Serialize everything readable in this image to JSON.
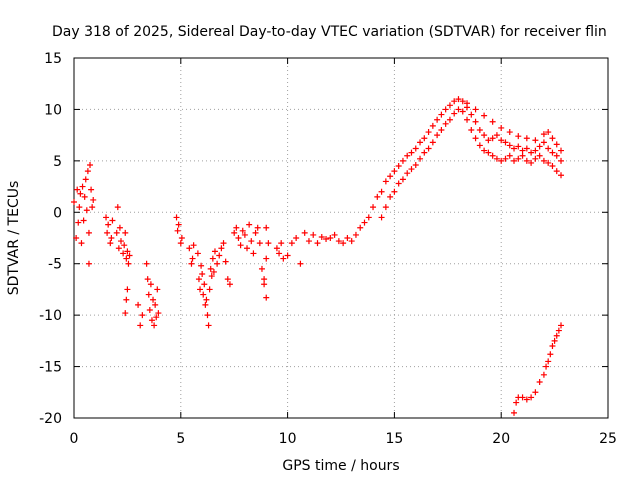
{
  "chart_data": {
    "type": "scatter",
    "title": "Day 318 of 2025, Sidereal Day-to-day VTEC variation (SDTVAR) for receiver flin",
    "xlabel": "GPS time / hours",
    "ylabel": "SDTVAR / TECUs",
    "xlim": [
      0,
      25
    ],
    "ylim": [
      -20,
      15
    ],
    "xticks": [
      0,
      5,
      10,
      15,
      20,
      25
    ],
    "yticks": [
      -20,
      -15,
      -10,
      -5,
      0,
      5,
      10,
      15
    ],
    "grid": true,
    "marker": "+",
    "color": "#ff0000",
    "series": [
      {
        "name": "SDTVAR",
        "points": [
          [
            0.0,
            1.0
          ],
          [
            0.1,
            -2.5
          ],
          [
            0.15,
            2.2
          ],
          [
            0.2,
            -1.0
          ],
          [
            0.25,
            0.5
          ],
          [
            0.3,
            1.8
          ],
          [
            0.35,
            -3.0
          ],
          [
            0.4,
            2.5
          ],
          [
            0.45,
            -0.8
          ],
          [
            0.5,
            1.5
          ],
          [
            0.55,
            3.2
          ],
          [
            0.6,
            0.2
          ],
          [
            0.65,
            4.0
          ],
          [
            0.7,
            -2.0
          ],
          [
            0.75,
            4.6
          ],
          [
            0.8,
            2.2
          ],
          [
            0.85,
            0.5
          ],
          [
            0.9,
            1.2
          ],
          [
            0.7,
            -5.0
          ],
          [
            1.5,
            -0.5
          ],
          [
            1.55,
            -2.0
          ],
          [
            1.6,
            -1.2
          ],
          [
            1.7,
            -3.0
          ],
          [
            1.75,
            -2.5
          ],
          [
            1.8,
            -0.8
          ],
          [
            2.0,
            -2.0
          ],
          [
            2.05,
            0.5
          ],
          [
            2.1,
            -3.5
          ],
          [
            2.15,
            -1.5
          ],
          [
            2.2,
            -2.8
          ],
          [
            2.3,
            -4.0
          ],
          [
            2.35,
            -3.2
          ],
          [
            2.4,
            -2.0
          ],
          [
            2.45,
            -4.5
          ],
          [
            2.5,
            -3.8
          ],
          [
            2.55,
            -5.0
          ],
          [
            2.6,
            -4.2
          ],
          [
            2.5,
            -7.5
          ],
          [
            2.45,
            -8.5
          ],
          [
            2.4,
            -9.8
          ],
          [
            3.0,
            -9.0
          ],
          [
            3.1,
            -11.0
          ],
          [
            3.2,
            -10.0
          ],
          [
            3.4,
            -5.0
          ],
          [
            3.45,
            -6.5
          ],
          [
            3.5,
            -8.0
          ],
          [
            3.55,
            -9.5
          ],
          [
            3.6,
            -7.0
          ],
          [
            3.65,
            -10.5
          ],
          [
            3.7,
            -8.5
          ],
          [
            3.75,
            -11.0
          ],
          [
            3.8,
            -9.0
          ],
          [
            3.85,
            -10.2
          ],
          [
            3.9,
            -7.5
          ],
          [
            3.95,
            -9.8
          ],
          [
            4.8,
            -0.5
          ],
          [
            4.85,
            -1.8
          ],
          [
            4.9,
            -1.2
          ],
          [
            5.0,
            -3.0
          ],
          [
            5.05,
            -2.5
          ],
          [
            5.4,
            -3.5
          ],
          [
            5.5,
            -5.0
          ],
          [
            5.55,
            -4.5
          ],
          [
            5.6,
            -3.2
          ],
          [
            5.8,
            -4.0
          ],
          [
            5.85,
            -6.5
          ],
          [
            5.9,
            -7.5
          ],
          [
            5.95,
            -5.2
          ],
          [
            6.0,
            -6.0
          ],
          [
            6.05,
            -8.0
          ],
          [
            6.1,
            -7.0
          ],
          [
            6.15,
            -9.0
          ],
          [
            6.2,
            -8.5
          ],
          [
            6.25,
            -10.0
          ],
          [
            6.3,
            -11.0
          ],
          [
            6.35,
            -7.5
          ],
          [
            6.4,
            -5.5
          ],
          [
            6.45,
            -6.2
          ],
          [
            6.5,
            -4.5
          ],
          [
            6.55,
            -5.8
          ],
          [
            6.6,
            -3.8
          ],
          [
            6.7,
            -5.0
          ],
          [
            6.8,
            -4.2
          ],
          [
            6.9,
            -3.5
          ],
          [
            7.0,
            -3.0
          ],
          [
            7.1,
            -4.8
          ],
          [
            7.2,
            -6.5
          ],
          [
            7.3,
            -7.0
          ],
          [
            7.5,
            -2.0
          ],
          [
            7.6,
            -1.5
          ],
          [
            7.7,
            -2.5
          ],
          [
            7.8,
            -3.2
          ],
          [
            7.9,
            -1.8
          ],
          [
            8.0,
            -2.2
          ],
          [
            8.1,
            -3.5
          ],
          [
            8.2,
            -1.2
          ],
          [
            8.3,
            -2.8
          ],
          [
            8.4,
            -4.0
          ],
          [
            8.5,
            -2.0
          ],
          [
            8.6,
            -1.5
          ],
          [
            8.7,
            -3.0
          ],
          [
            8.8,
            -5.5
          ],
          [
            8.9,
            -6.5
          ],
          [
            9.0,
            -4.5
          ],
          [
            9.1,
            -3.0
          ],
          [
            9.0,
            -1.5
          ],
          [
            8.9,
            -7.0
          ],
          [
            9.0,
            -8.3
          ],
          [
            9.5,
            -3.5
          ],
          [
            9.6,
            -4.0
          ],
          [
            9.7,
            -3.0
          ],
          [
            9.8,
            -4.5
          ],
          [
            10.0,
            -4.2
          ],
          [
            10.2,
            -3.0
          ],
          [
            10.4,
            -2.5
          ],
          [
            10.6,
            -5.0
          ],
          [
            10.8,
            -2.0
          ],
          [
            11.0,
            -2.8
          ],
          [
            11.2,
            -2.2
          ],
          [
            11.4,
            -3.0
          ],
          [
            11.6,
            -2.4
          ],
          [
            11.8,
            -2.6
          ],
          [
            12.0,
            -2.5
          ],
          [
            12.2,
            -2.2
          ],
          [
            12.4,
            -2.8
          ],
          [
            12.6,
            -3.0
          ],
          [
            12.8,
            -2.5
          ],
          [
            13.0,
            -2.8
          ],
          [
            13.2,
            -2.2
          ],
          [
            13.4,
            -1.5
          ],
          [
            13.6,
            -1.0
          ],
          [
            13.8,
            -0.5
          ],
          [
            14.0,
            0.5
          ],
          [
            14.2,
            1.5
          ],
          [
            14.4,
            2.0
          ],
          [
            14.6,
            3.0
          ],
          [
            14.8,
            3.5
          ],
          [
            15.0,
            4.0
          ],
          [
            15.2,
            4.5
          ],
          [
            15.4,
            5.0
          ],
          [
            15.6,
            5.5
          ],
          [
            15.8,
            5.8
          ],
          [
            16.0,
            6.2
          ],
          [
            16.2,
            6.8
          ],
          [
            16.4,
            7.2
          ],
          [
            16.6,
            7.8
          ],
          [
            16.8,
            8.4
          ],
          [
            17.0,
            9.0
          ],
          [
            17.2,
            9.5
          ],
          [
            17.4,
            10.0
          ],
          [
            17.6,
            10.4
          ],
          [
            17.8,
            10.8
          ],
          [
            18.0,
            11.0
          ],
          [
            18.2,
            10.8
          ],
          [
            18.4,
            10.2
          ],
          [
            18.6,
            9.5
          ],
          [
            18.8,
            8.8
          ],
          [
            19.0,
            8.0
          ],
          [
            19.2,
            7.5
          ],
          [
            19.4,
            7.0
          ],
          [
            19.6,
            7.2
          ],
          [
            19.8,
            7.5
          ],
          [
            20.0,
            7.0
          ],
          [
            20.2,
            6.8
          ],
          [
            20.4,
            6.5
          ],
          [
            20.6,
            6.2
          ],
          [
            20.8,
            6.4
          ],
          [
            21.0,
            6.0
          ],
          [
            21.2,
            6.2
          ],
          [
            21.4,
            5.8
          ],
          [
            21.6,
            6.0
          ],
          [
            21.8,
            6.4
          ],
          [
            22.0,
            6.8
          ],
          [
            22.2,
            6.2
          ],
          [
            22.4,
            5.8
          ],
          [
            22.6,
            5.5
          ],
          [
            22.8,
            5.0
          ],
          [
            14.4,
            -0.5
          ],
          [
            14.6,
            0.5
          ],
          [
            14.8,
            1.5
          ],
          [
            15.0,
            2.0
          ],
          [
            15.2,
            2.8
          ],
          [
            15.4,
            3.2
          ],
          [
            15.6,
            3.8
          ],
          [
            15.8,
            4.2
          ],
          [
            16.0,
            4.6
          ],
          [
            16.2,
            5.2
          ],
          [
            16.4,
            5.8
          ],
          [
            16.6,
            6.2
          ],
          [
            16.8,
            6.8
          ],
          [
            17.0,
            7.5
          ],
          [
            17.2,
            8.0
          ],
          [
            17.4,
            8.6
          ],
          [
            17.6,
            9.0
          ],
          [
            17.8,
            9.6
          ],
          [
            18.0,
            10.0
          ],
          [
            18.2,
            9.8
          ],
          [
            18.4,
            9.0
          ],
          [
            18.6,
            8.0
          ],
          [
            18.8,
            7.2
          ],
          [
            19.0,
            6.5
          ],
          [
            19.2,
            6.0
          ],
          [
            19.4,
            5.8
          ],
          [
            19.6,
            5.5
          ],
          [
            19.8,
            5.2
          ],
          [
            20.0,
            5.0
          ],
          [
            20.2,
            5.2
          ],
          [
            20.4,
            5.5
          ],
          [
            20.6,
            5.0
          ],
          [
            20.8,
            5.2
          ],
          [
            21.0,
            5.5
          ],
          [
            21.2,
            5.0
          ],
          [
            21.4,
            4.8
          ],
          [
            21.6,
            5.2
          ],
          [
            21.8,
            5.5
          ],
          [
            22.0,
            5.0
          ],
          [
            22.2,
            4.8
          ],
          [
            22.4,
            4.5
          ],
          [
            22.6,
            4.0
          ],
          [
            22.8,
            3.6
          ],
          [
            18.4,
            10.6
          ],
          [
            18.8,
            10.0
          ],
          [
            19.2,
            9.4
          ],
          [
            19.6,
            8.8
          ],
          [
            20.0,
            8.2
          ],
          [
            20.4,
            7.8
          ],
          [
            20.8,
            7.4
          ],
          [
            21.2,
            7.2
          ],
          [
            21.6,
            7.0
          ],
          [
            22.0,
            7.6
          ],
          [
            22.2,
            7.8
          ],
          [
            22.4,
            7.2
          ],
          [
            22.6,
            6.6
          ],
          [
            22.8,
            6.0
          ],
          [
            20.6,
            -19.5
          ],
          [
            20.7,
            -18.5
          ],
          [
            20.8,
            -18.0
          ],
          [
            21.0,
            -18.0
          ],
          [
            21.2,
            -18.2
          ],
          [
            21.4,
            -18.0
          ],
          [
            21.6,
            -17.5
          ],
          [
            21.8,
            -16.5
          ],
          [
            22.0,
            -15.8
          ],
          [
            22.1,
            -15.0
          ],
          [
            22.2,
            -14.5
          ],
          [
            22.3,
            -13.8
          ],
          [
            22.4,
            -13.0
          ],
          [
            22.5,
            -12.5
          ],
          [
            22.6,
            -12.0
          ],
          [
            22.7,
            -11.5
          ],
          [
            22.8,
            -11.0
          ]
        ]
      }
    ]
  }
}
